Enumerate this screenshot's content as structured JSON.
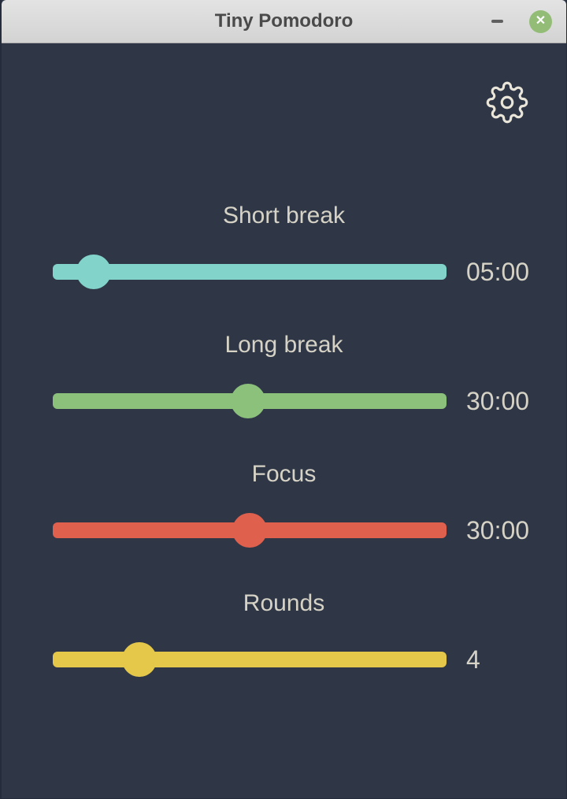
{
  "window": {
    "title": "Tiny Pomodoro",
    "titlebar_bg": "#d8d8d8",
    "title_color": "#4a4a4a",
    "content_bg": "#2f3747",
    "text_color": "#d6d3c6",
    "minimize_label": "–",
    "close_label": "✕",
    "close_button_color": "#93bd77"
  },
  "toolbar": {
    "settings_icon": "gear-icon",
    "icon_color": "#e9e5d8"
  },
  "sliders": [
    {
      "id": "short-break",
      "label": "Short break",
      "value": "05:00",
      "color": "#82d4ca",
      "handle_percent": 10.4
    },
    {
      "id": "long-break",
      "label": "Long break",
      "value": "30:00",
      "color": "#8cc17c",
      "handle_percent": 49.6
    },
    {
      "id": "focus",
      "label": "Focus",
      "value": "30:00",
      "color": "#e0604e",
      "handle_percent": 50
    },
    {
      "id": "rounds",
      "label": "Rounds",
      "value": "4",
      "color": "#e5c84a",
      "handle_percent": 22
    }
  ]
}
